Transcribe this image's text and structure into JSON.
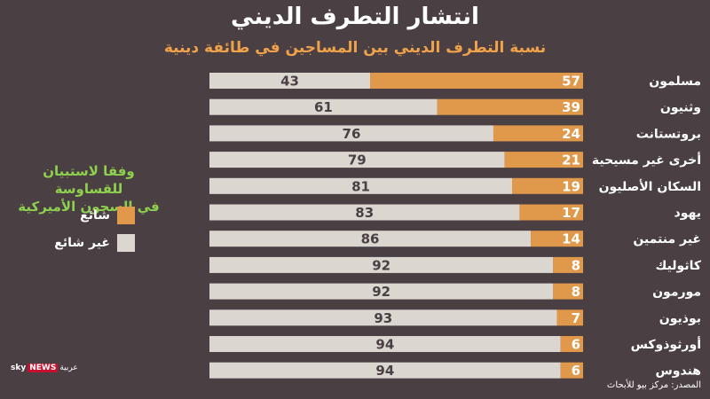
{
  "chart_data": {
    "type": "bar",
    "stacked": true,
    "orientation": "horizontal",
    "title": "انتشار التطرف الديني",
    "subtitle": "نسبة التطرف الديني بين المساجين في طائفة دينية",
    "categories": [
      "مسلمون",
      "وثنيون",
      "بروتستانت",
      "أخرى غير مسيحية",
      "السكان الأصليون",
      "يهود",
      "غير منتمين",
      "كاثوليك",
      "مورمون",
      "بوذيون",
      "أورثوذوكس",
      "هندوس"
    ],
    "series": [
      {
        "name": "شائع",
        "color": "#e0984a",
        "values": [
          57,
          39,
          24,
          21,
          19,
          17,
          14,
          8,
          8,
          7,
          6,
          6
        ]
      },
      {
        "name": "غير شائع",
        "color": "#dcd6d1",
        "values": [
          43,
          61,
          76,
          79,
          81,
          83,
          86,
          92,
          92,
          93,
          94,
          94
        ]
      }
    ],
    "xlim": [
      0,
      100
    ],
    "legend_position": "left",
    "note": "وفقا لاستبيان للقساوسة في السجون الأميركية"
  },
  "legend_note": [
    "وفقا لاستبيان للقساوسة",
    "في السجون الأميركية"
  ],
  "source": "المصدر: مركز بيو للأبحاث",
  "logo": {
    "sky": "sky",
    "news": "NEWS",
    "arabic": "عربية"
  },
  "colors": {
    "background": "#4a3f43",
    "accent": "#f0a24b",
    "note": "#8fd14f"
  }
}
